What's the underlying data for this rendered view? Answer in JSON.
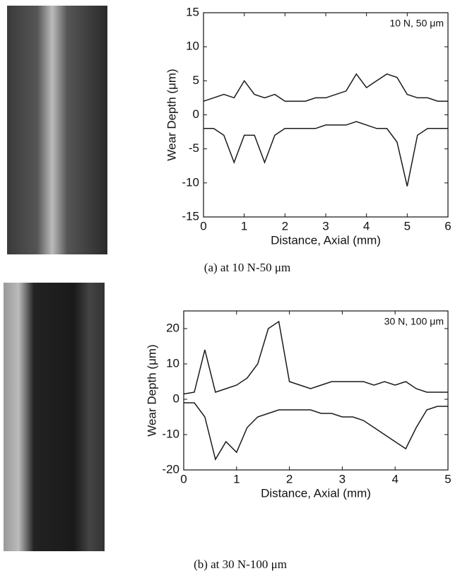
{
  "chart_data": [
    {
      "type": "line",
      "annotation": "10 N, 50 μm",
      "x_label": "Distance, Axial (mm)",
      "y_label": "Wear Depth (μm)",
      "caption": "(a) at 10 N-50 μm",
      "x": [
        0,
        0.25,
        0.5,
        0.75,
        1,
        1.25,
        1.5,
        1.75,
        2,
        2.25,
        2.5,
        2.75,
        3,
        3.25,
        3.5,
        3.75,
        4,
        4.25,
        4.5,
        4.75,
        5,
        5.25,
        5.5,
        5.75,
        6
      ],
      "series": [
        {
          "color": "#1a1a1a",
          "values": [
            2,
            2.5,
            3,
            2.5,
            5,
            3,
            2.5,
            3,
            2,
            2,
            2,
            2.5,
            2.5,
            3,
            3.5,
            6,
            4,
            5,
            6,
            5.5,
            3,
            2.5,
            2.5,
            2,
            2
          ]
        },
        {
          "color": "#1a1a1a",
          "values": [
            -2,
            -2,
            -3,
            -7,
            -3,
            -3,
            -7,
            -3,
            -2,
            -2,
            -2,
            -2,
            -1.5,
            -1.5,
            -1.5,
            -1,
            -1.5,
            -2,
            -2,
            -4,
            -10.5,
            -3,
            -2,
            -2,
            -2
          ]
        }
      ],
      "xlim": [
        0,
        6
      ],
      "xticks": [
        0,
        1,
        2,
        3,
        4,
        5,
        6
      ],
      "ylim": [
        -15,
        15
      ],
      "yticks": [
        -15,
        -10,
        -5,
        0,
        5,
        10,
        15
      ]
    },
    {
      "type": "line",
      "annotation": "30 N, 100 μm",
      "x_label": "Distance, Axial (mm)",
      "y_label": "Wear Depth (μm)",
      "caption": "(b) at 30 N-100 μm",
      "x": [
        0,
        0.2,
        0.4,
        0.6,
        0.8,
        1,
        1.2,
        1.4,
        1.6,
        1.8,
        2,
        2.2,
        2.4,
        2.6,
        2.8,
        3,
        3.2,
        3.4,
        3.6,
        3.8,
        4,
        4.2,
        4.4,
        4.6,
        4.8,
        5
      ],
      "series": [
        {
          "color": "#1a1a1a",
          "values": [
            1.5,
            2,
            14,
            2,
            3,
            4,
            6,
            10,
            20,
            22,
            5,
            4,
            3,
            4,
            5,
            5,
            5,
            5,
            4,
            5,
            4,
            5,
            3,
            2,
            2,
            2
          ]
        },
        {
          "color": "#1a1a1a",
          "values": [
            -1,
            -1,
            -5,
            -17,
            -12,
            -15,
            -8,
            -5,
            -4,
            -3,
            -3,
            -3,
            -3,
            -4,
            -4,
            -5,
            -5,
            -6,
            -8,
            -10,
            -12,
            -14,
            -8,
            -3,
            -2,
            -2
          ]
        }
      ],
      "xlim": [
        0,
        5
      ],
      "xticks": [
        0,
        1,
        2,
        3,
        4,
        5
      ],
      "ylim": [
        -20,
        25
      ],
      "yticks": [
        -20,
        -10,
        0,
        10,
        20
      ]
    }
  ]
}
